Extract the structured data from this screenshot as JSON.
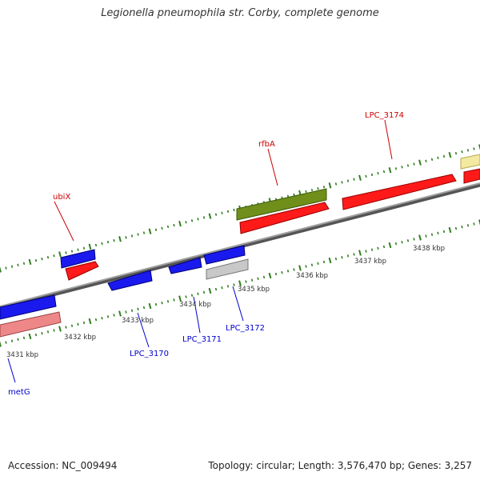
{
  "title": "Legionella pneumophila str. Corby, complete genome",
  "footer": {
    "accession": "Accession: NC_009494",
    "summary": "Topology: circular; Length: 3,576,470 bp; Genes: 3,257"
  },
  "colors": {
    "backbone": "#8a8a8a",
    "tick": "#2f7d1e",
    "forward_label": "#cc0000",
    "reverse_label": "#0000cc",
    "cds_red": "#ff1a1a",
    "cds_blue": "#1a1aee",
    "cds_olive": "#6f8f1a",
    "cds_gray": "#c8c8c8",
    "cds_pink": "#ee8888",
    "cds_yellow": "#f3e9a0"
  },
  "kbp_labels": [
    "3431 kbp",
    "3432 kbp",
    "3433 kbp",
    "3434 kbp",
    "3435 kbp",
    "3436 kbp",
    "3437 kbp",
    "3438 kbp"
  ],
  "gene_labels": {
    "forward": [
      "ubiX",
      "rfbA",
      "LPC_3174"
    ],
    "reverse": [
      "metG",
      "LPC_3170",
      "LPC_3171",
      "LPC_3172"
    ]
  }
}
